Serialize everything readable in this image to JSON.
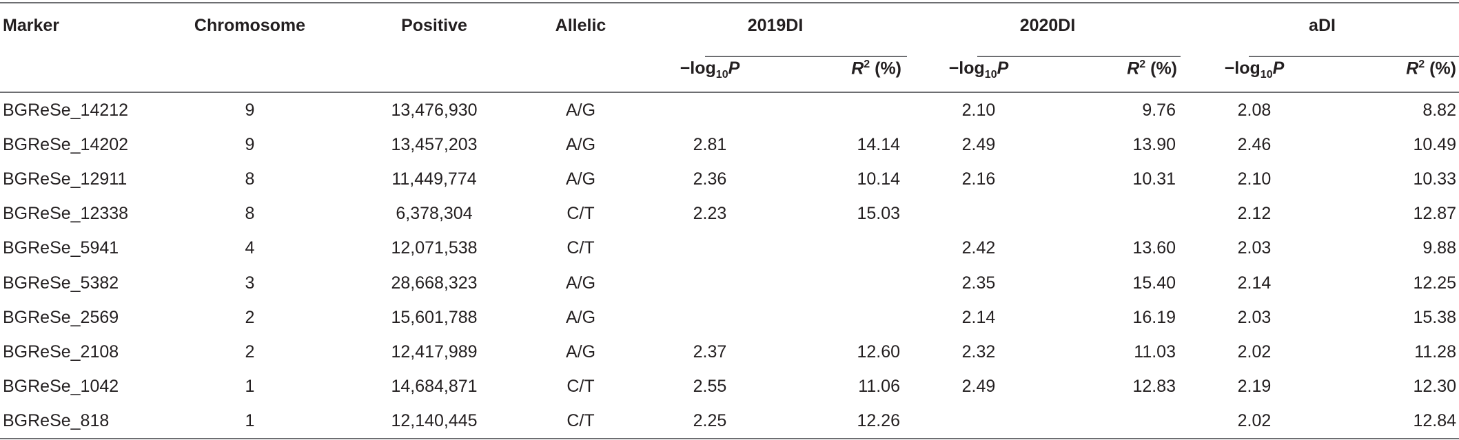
{
  "headers": {
    "marker": "Marker",
    "chromosome": "Chromosome",
    "positive": "Positive",
    "allelic": "Allelic",
    "groups": [
      "2019DI",
      "2020DI",
      "aDI"
    ],
    "sub_log_prefix": "−log",
    "sub_log_sub": "10",
    "sub_log_var": "P",
    "sub_r_var": "R",
    "sub_r_sup": "2",
    "sub_r_suffix": " (%)"
  },
  "rows": [
    {
      "marker": "BGReSe_14212",
      "chr": "9",
      "pos": "13,476,930",
      "allelic": "A/G",
      "p2019": "",
      "r2019": "",
      "p2020": "2.10",
      "r2020": "9.76",
      "padi": "2.08",
      "radi": "8.82"
    },
    {
      "marker": "BGReSe_14202",
      "chr": "9",
      "pos": "13,457,203",
      "allelic": "A/G",
      "p2019": "2.81",
      "r2019": "14.14",
      "p2020": "2.49",
      "r2020": "13.90",
      "padi": "2.46",
      "radi": "10.49"
    },
    {
      "marker": "BGReSe_12911",
      "chr": "8",
      "pos": "11,449,774",
      "allelic": "A/G",
      "p2019": "2.36",
      "r2019": "10.14",
      "p2020": "2.16",
      "r2020": "10.31",
      "padi": "2.10",
      "radi": "10.33"
    },
    {
      "marker": "BGReSe_12338",
      "chr": "8",
      "pos": "6,378,304",
      "allelic": "C/T",
      "p2019": "2.23",
      "r2019": "15.03",
      "p2020": "",
      "r2020": "",
      "padi": "2.12",
      "radi": "12.87"
    },
    {
      "marker": "BGReSe_5941",
      "chr": "4",
      "pos": "12,071,538",
      "allelic": "C/T",
      "p2019": "",
      "r2019": "",
      "p2020": "2.42",
      "r2020": "13.60",
      "padi": "2.03",
      "radi": "9.88"
    },
    {
      "marker": "BGReSe_5382",
      "chr": "3",
      "pos": "28,668,323",
      "allelic": "A/G",
      "p2019": "",
      "r2019": "",
      "p2020": "2.35",
      "r2020": "15.40",
      "padi": "2.14",
      "radi": "12.25"
    },
    {
      "marker": "BGReSe_2569",
      "chr": "2",
      "pos": "15,601,788",
      "allelic": "A/G",
      "p2019": "",
      "r2019": "",
      "p2020": "2.14",
      "r2020": "16.19",
      "padi": "2.03",
      "radi": "15.38"
    },
    {
      "marker": "BGReSe_2108",
      "chr": "2",
      "pos": "12,417,989",
      "allelic": "A/G",
      "p2019": "2.37",
      "r2019": "12.60",
      "p2020": "2.32",
      "r2020": "11.03",
      "padi": "2.02",
      "radi": "11.28"
    },
    {
      "marker": "BGReSe_1042",
      "chr": "1",
      "pos": "14,684,871",
      "allelic": "C/T",
      "p2019": "2.55",
      "r2019": "11.06",
      "p2020": "2.49",
      "r2020": "12.83",
      "padi": "2.19",
      "radi": "12.30"
    },
    {
      "marker": "BGReSe_818",
      "chr": "1",
      "pos": "12,140,445",
      "allelic": "C/T",
      "p2019": "2.25",
      "r2019": "12.26",
      "p2020": "",
      "r2020": "",
      "padi": "2.02",
      "radi": "12.84"
    }
  ]
}
